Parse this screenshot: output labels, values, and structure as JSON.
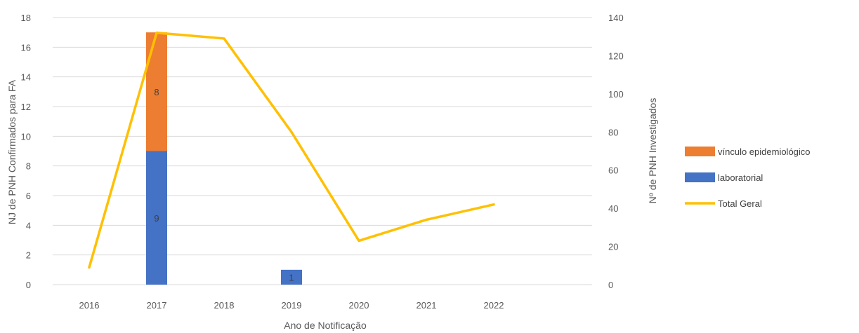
{
  "chart_data": {
    "type": "bar",
    "categories": [
      "2016",
      "2017",
      "2018",
      "2019",
      "2020",
      "2021",
      "2022"
    ],
    "series": [
      {
        "name": "laboratorial",
        "kind": "stacked-bar",
        "axis": "left",
        "color": "#4472C4",
        "values": [
          0,
          9,
          0,
          1,
          0,
          0,
          0
        ],
        "labels": [
          "",
          "9",
          "",
          "1",
          "",
          "",
          ""
        ]
      },
      {
        "name": "vínculo epidemiológico",
        "kind": "stacked-bar",
        "axis": "left",
        "color": "#ED7D31",
        "values": [
          0,
          8,
          0,
          0,
          0,
          0,
          0
        ],
        "labels": [
          "",
          "8",
          "",
          "",
          "",
          "",
          ""
        ]
      },
      {
        "name": "Total Geral",
        "kind": "line",
        "axis": "right",
        "color": "#FFC000",
        "values": [
          9,
          132,
          129,
          80,
          23,
          34,
          42
        ]
      }
    ],
    "xlabel": "Ano de Notificação",
    "ylabel": "NJ de PNH Confirmados para FA",
    "y2label": "Nº de PNH Investigados",
    "ylim": [
      0,
      18
    ],
    "yticks": [
      "0",
      "2",
      "4",
      "6",
      "8",
      "10",
      "12",
      "14",
      "16",
      "18"
    ],
    "y2lim": [
      0,
      140
    ],
    "y2ticks": [
      "0",
      "20",
      "40",
      "60",
      "80",
      "100",
      "120",
      "140"
    ],
    "grid": true,
    "legend": {
      "position": "right",
      "items": [
        "vínculo epidemiológico",
        "laboratorial",
        "Total Geral"
      ]
    }
  }
}
